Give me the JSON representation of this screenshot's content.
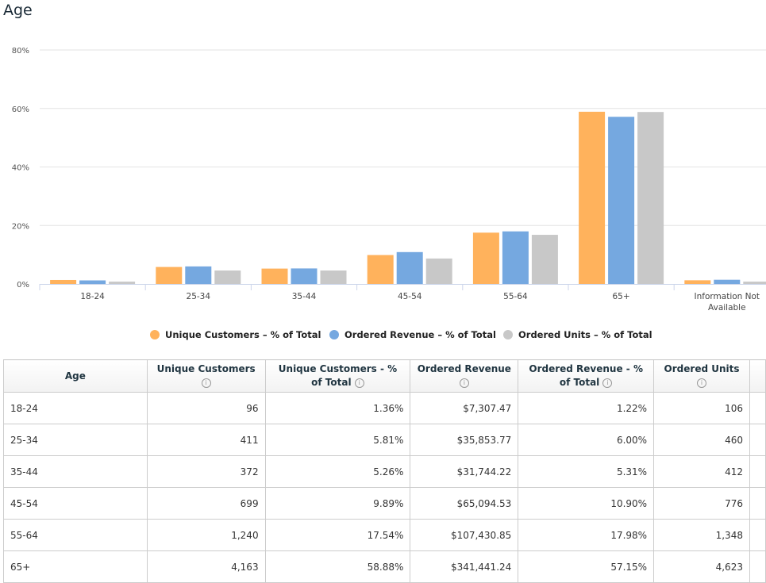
{
  "title": "Age",
  "chart_data": {
    "type": "bar",
    "title": "",
    "categories": [
      "18-24",
      "25-34",
      "35-44",
      "45-54",
      "55-64",
      "65+",
      "Information Not Available"
    ],
    "series": [
      {
        "name": "Unique Customers - % of Total",
        "color": "#ffb25c",
        "values": [
          1.36,
          5.81,
          5.26,
          9.89,
          17.54,
          58.88,
          1.26
        ]
      },
      {
        "name": "Ordered Revenue - % of Total",
        "color": "#75a8e0",
        "values": [
          1.22,
          6.0,
          5.31,
          10.9,
          17.98,
          57.15,
          1.44
        ]
      },
      {
        "name": "Ordered Units - % of Total",
        "color": "#c8c8c8",
        "values": [
          0.8,
          4.6,
          4.6,
          8.7,
          16.8,
          58.8,
          0.8
        ]
      }
    ],
    "yticks": [
      "0%",
      "20%",
      "40%",
      "60%",
      "80%"
    ],
    "ylim": [
      0,
      80
    ],
    "grid": true,
    "legend": "bottom"
  },
  "table": {
    "headers": [
      "Age",
      "Unique Customers",
      "Unique Customers - % of Total",
      "Ordered Revenue",
      "Ordered Revenue - % of Total",
      "Ordered Units"
    ],
    "rows": [
      [
        "18-24",
        "96",
        "1.36%",
        "$7,307.47",
        "1.22%",
        "106"
      ],
      [
        "25-34",
        "411",
        "5.81%",
        "$35,853.77",
        "6.00%",
        "460"
      ],
      [
        "35-44",
        "372",
        "5.26%",
        "$31,744.22",
        "5.31%",
        "412"
      ],
      [
        "45-54",
        "699",
        "9.89%",
        "$65,094.53",
        "10.90%",
        "776"
      ],
      [
        "55-64",
        "1,240",
        "17.54%",
        "$107,430.85",
        "17.98%",
        "1,348"
      ],
      [
        "65+",
        "4,163",
        "58.88%",
        "$341,441.24",
        "57.15%",
        "4,623"
      ]
    ]
  }
}
